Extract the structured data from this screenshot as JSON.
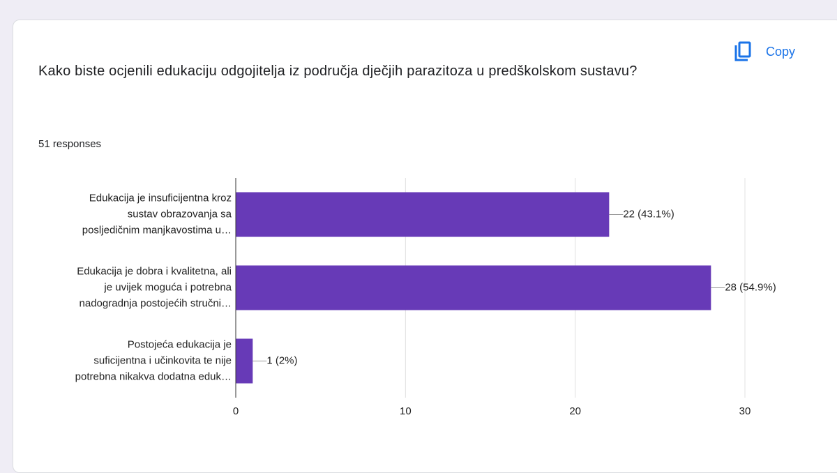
{
  "chart_data": {
    "type": "bar",
    "orientation": "horizontal",
    "title": "Kako biste ocjenili edukaciju odgojitelja iz područja dječjih parazitoza u predškolskom sustavu?",
    "subtitle": "51 responses",
    "button": "Copy",
    "categories": [
      [
        "Edukacija je insuficijentna kroz",
        "sustav obrazovanja sa",
        "posljedičnim manjkavostima u…"
      ],
      [
        "Edukacija je dobra i kvalitetna, ali",
        "je uvijek moguća i potrebna",
        "nadogradnja postojećih stručni…"
      ],
      [
        "Postojeća edukacija je",
        "suficijentna i učinkovita te nije",
        "potrebna nikakva dodatna eduk…"
      ]
    ],
    "values": [
      22,
      28,
      1
    ],
    "value_labels": [
      "22 (43.1%)",
      "28 (54.9%)",
      "1 (2%)"
    ],
    "color": "#673ab7",
    "xlim": [
      0,
      30
    ],
    "xticks": [
      0,
      10,
      20,
      30
    ],
    "grid": true
  }
}
